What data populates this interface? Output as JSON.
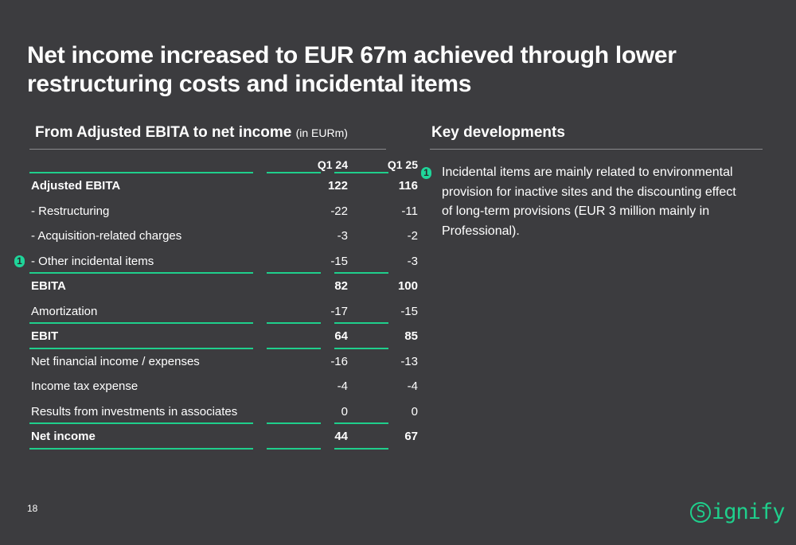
{
  "title": "Net income increased to EUR 67m achieved through lower restructuring costs and incidental items",
  "left_section": {
    "title": "From Adjusted EBITA to net income",
    "subtitle": "(in EURm)"
  },
  "table": {
    "columns": [
      "Q1 24",
      "Q1 25"
    ],
    "rows": [
      {
        "label": "Adjusted EBITA",
        "q1_24": "122",
        "q1_25": "116",
        "bold": true,
        "underline": false,
        "marker": ""
      },
      {
        "label": "- Restructuring",
        "q1_24": "-22",
        "q1_25": "-11",
        "bold": false,
        "underline": false,
        "marker": ""
      },
      {
        "label": "- Acquisition-related charges",
        "q1_24": "-3",
        "q1_25": "-2",
        "bold": false,
        "underline": false,
        "marker": ""
      },
      {
        "label": "- Other incidental items",
        "q1_24": "-15",
        "q1_25": "-3",
        "bold": false,
        "underline": true,
        "marker": "1"
      },
      {
        "label": "EBITA",
        "q1_24": "82",
        "q1_25": "100",
        "bold": true,
        "underline": false,
        "marker": ""
      },
      {
        "label": "Amortization",
        "q1_24": "-17",
        "q1_25": "-15",
        "bold": false,
        "underline": true,
        "marker": ""
      },
      {
        "label": "EBIT",
        "q1_24": "64",
        "q1_25": "85",
        "bold": true,
        "underline": true,
        "marker": ""
      },
      {
        "label": "Net financial income / expenses",
        "q1_24": "-16",
        "q1_25": "-13",
        "bold": false,
        "underline": false,
        "marker": ""
      },
      {
        "label": "Income tax expense",
        "q1_24": "-4",
        "q1_25": "-4",
        "bold": false,
        "underline": false,
        "marker": ""
      },
      {
        "label": "Results from investments in associates",
        "q1_24": "0",
        "q1_25": "0",
        "bold": false,
        "underline": true,
        "marker": ""
      },
      {
        "label": "Net income",
        "q1_24": "44",
        "q1_25": "67",
        "bold": true,
        "underline": true,
        "marker": ""
      }
    ]
  },
  "key_developments": {
    "title": "Key developments",
    "marker": "1",
    "text": "Incidental items are mainly related to environmental provision for inactive sites and the discounting effect of long-term provisions (EUR 3 million mainly in Professional)."
  },
  "page_number": "18",
  "logo": {
    "s": "S",
    "rest": "ignify"
  },
  "colors": {
    "background": "#3c3c3f",
    "accent": "#1fcf8c",
    "text": "#ffffff"
  }
}
